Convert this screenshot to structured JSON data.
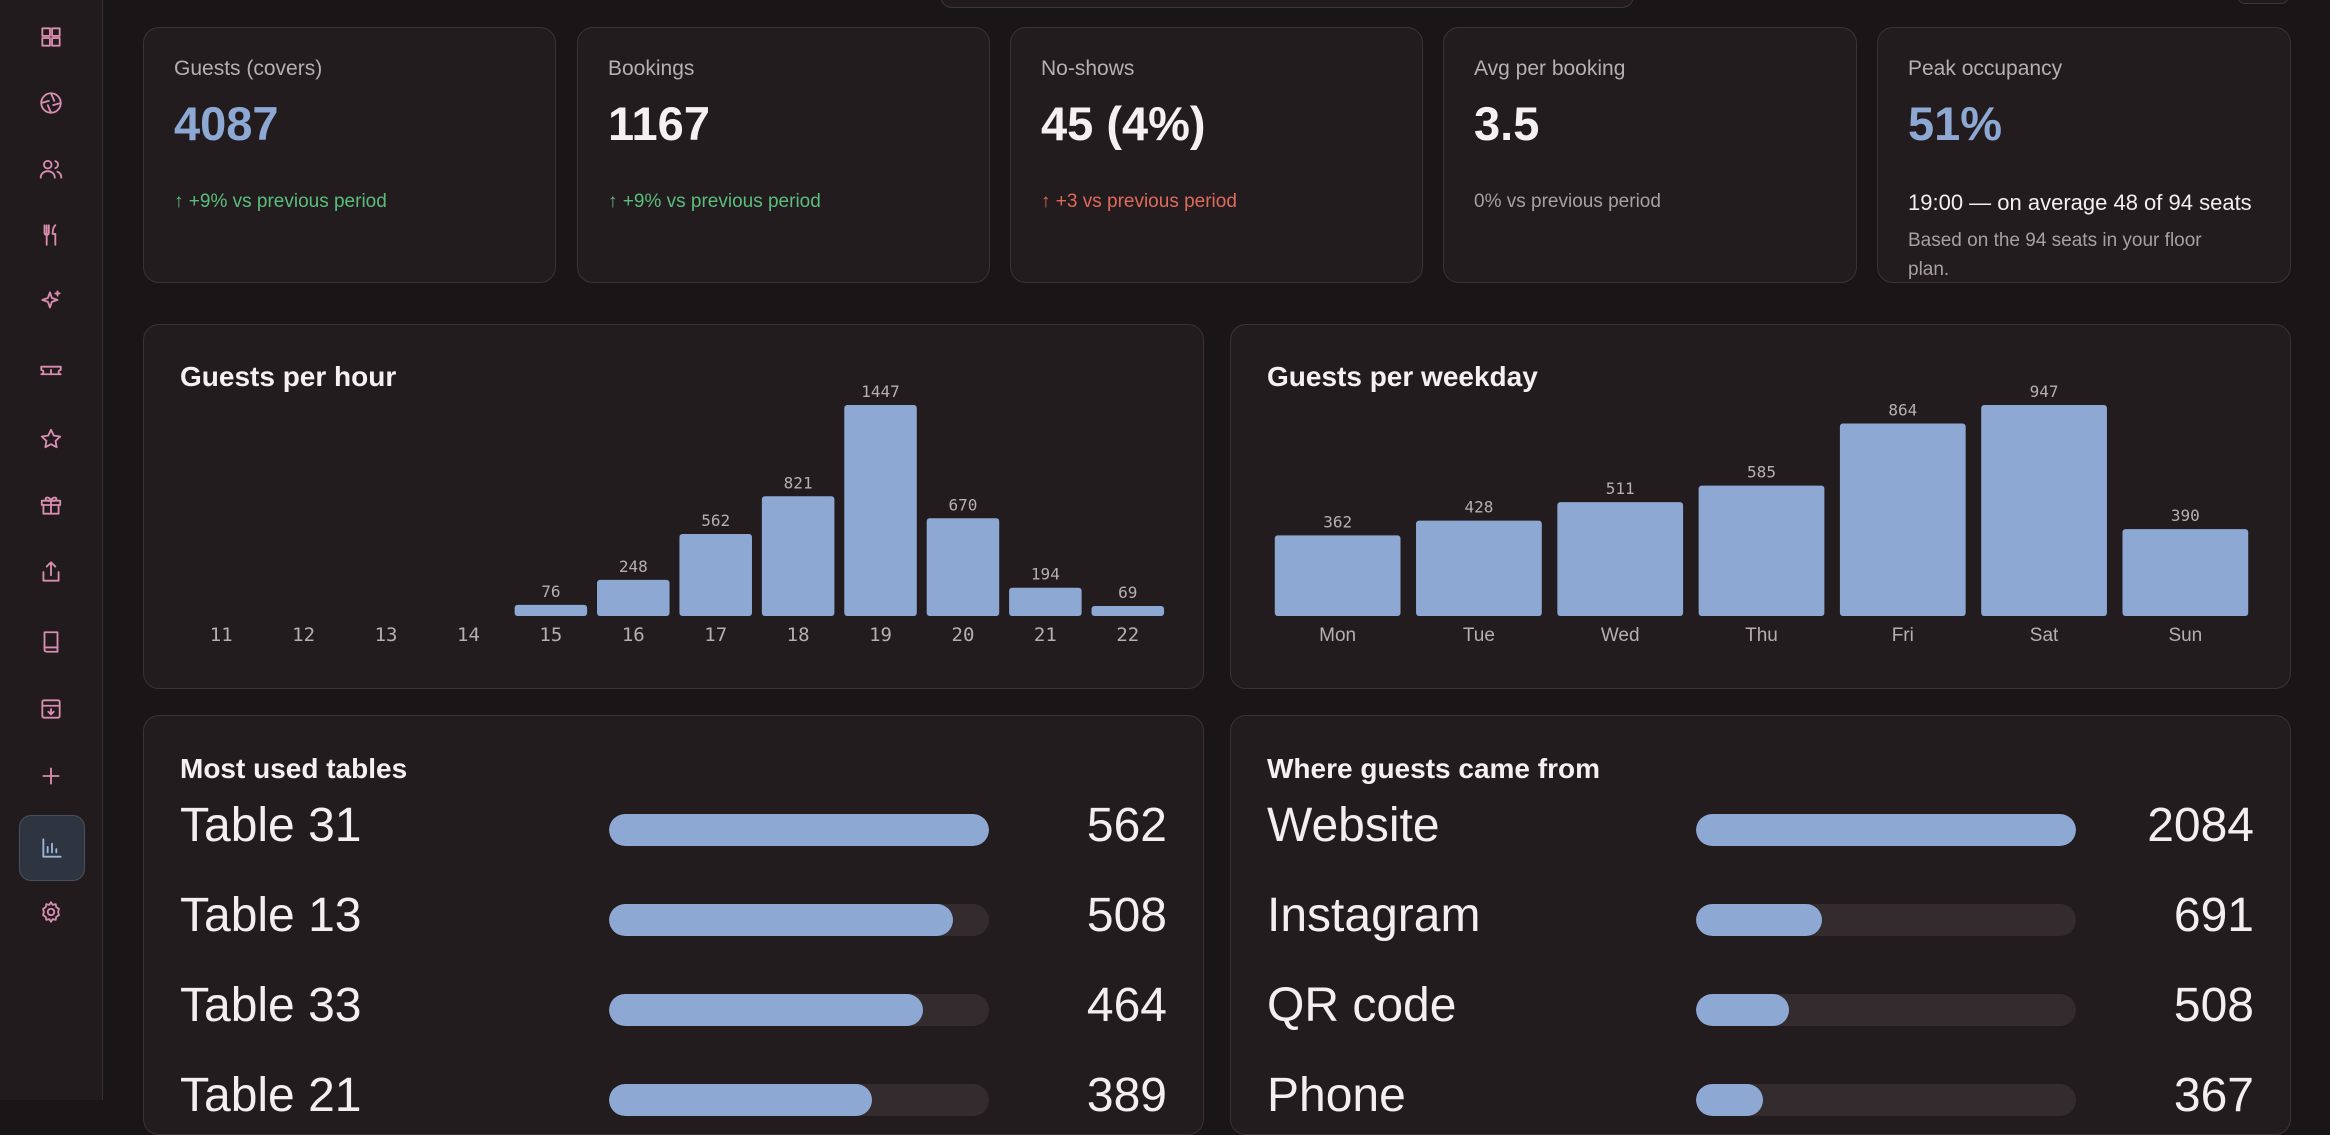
{
  "sidebar": {
    "items": [
      {
        "icon": "dashboard-icon"
      },
      {
        "icon": "aperture-icon"
      },
      {
        "icon": "users-icon"
      },
      {
        "icon": "utensils-icon"
      },
      {
        "icon": "sparkles-icon"
      },
      {
        "icon": "ticket-icon"
      },
      {
        "icon": "star-icon"
      },
      {
        "icon": "gift-icon"
      },
      {
        "icon": "share-icon"
      },
      {
        "icon": "book-icon"
      },
      {
        "icon": "archive-icon"
      },
      {
        "icon": "plus-icon"
      },
      {
        "icon": "chart-icon",
        "active": true
      },
      {
        "icon": "settings-icon"
      }
    ]
  },
  "kpis": [
    {
      "label": "Guests (covers)",
      "value": "4087",
      "delta": "↑ +9% vs previous period",
      "tone": "up",
      "accent": true
    },
    {
      "label": "Bookings",
      "value": "1167",
      "delta": "↑ +9% vs previous period",
      "tone": "up",
      "accent": false
    },
    {
      "label": "No-shows",
      "value": "45 (4%)",
      "delta": "↑ +3 vs previous period",
      "tone": "bad",
      "accent": false
    },
    {
      "label": "Avg per booking",
      "value": "3.5",
      "delta": "0% vs previous period",
      "tone": "neutral",
      "accent": false
    },
    {
      "label": "Peak occupancy",
      "value": "51%",
      "detail": "19:00 — on average 48 of 94 seats",
      "note": "Based on the 94 seats in your floor plan.",
      "accent": true
    }
  ],
  "guests_per_hour": {
    "title": "Guests per hour"
  },
  "guests_per_weekday": {
    "title": "Guests per weekday"
  },
  "chart_data": [
    {
      "type": "bar",
      "title": "Guests per hour",
      "categories": [
        "11",
        "12",
        "13",
        "14",
        "15",
        "16",
        "17",
        "18",
        "19",
        "20",
        "21",
        "22"
      ],
      "values": [
        0,
        0,
        0,
        0,
        76,
        248,
        562,
        821,
        1447,
        670,
        194,
        69
      ],
      "bar_color": "#8ea8d4"
    },
    {
      "type": "bar",
      "title": "Guests per weekday",
      "categories": [
        "Mon",
        "Tue",
        "Wed",
        "Thu",
        "Fri",
        "Sat",
        "Sun"
      ],
      "values": [
        362,
        428,
        511,
        585,
        864,
        947,
        390
      ],
      "bar_color": "#8ea8d4"
    }
  ],
  "tables": {
    "title": "Most used tables",
    "rows": [
      {
        "label": "Table 31",
        "value": "562",
        "share": 1.0
      },
      {
        "label": "Table 13",
        "value": "508",
        "share": 0.904
      },
      {
        "label": "Table 33",
        "value": "464",
        "share": 0.826
      },
      {
        "label": "Table 21",
        "value": "389",
        "share": 0.692
      }
    ]
  },
  "sources": {
    "title": "Where guests came from",
    "rows": [
      {
        "label": "Website",
        "value": "2084",
        "share": 1.0
      },
      {
        "label": "Instagram",
        "value": "691",
        "share": 0.332
      },
      {
        "label": "QR code",
        "value": "508",
        "share": 0.244
      },
      {
        "label": "Phone",
        "value": "367",
        "share": 0.176
      }
    ]
  },
  "colors": {
    "accent": "#8ea8d4",
    "positive": "#5bbd7c",
    "negative": "#e06a5a",
    "icon": "#d98db0"
  }
}
